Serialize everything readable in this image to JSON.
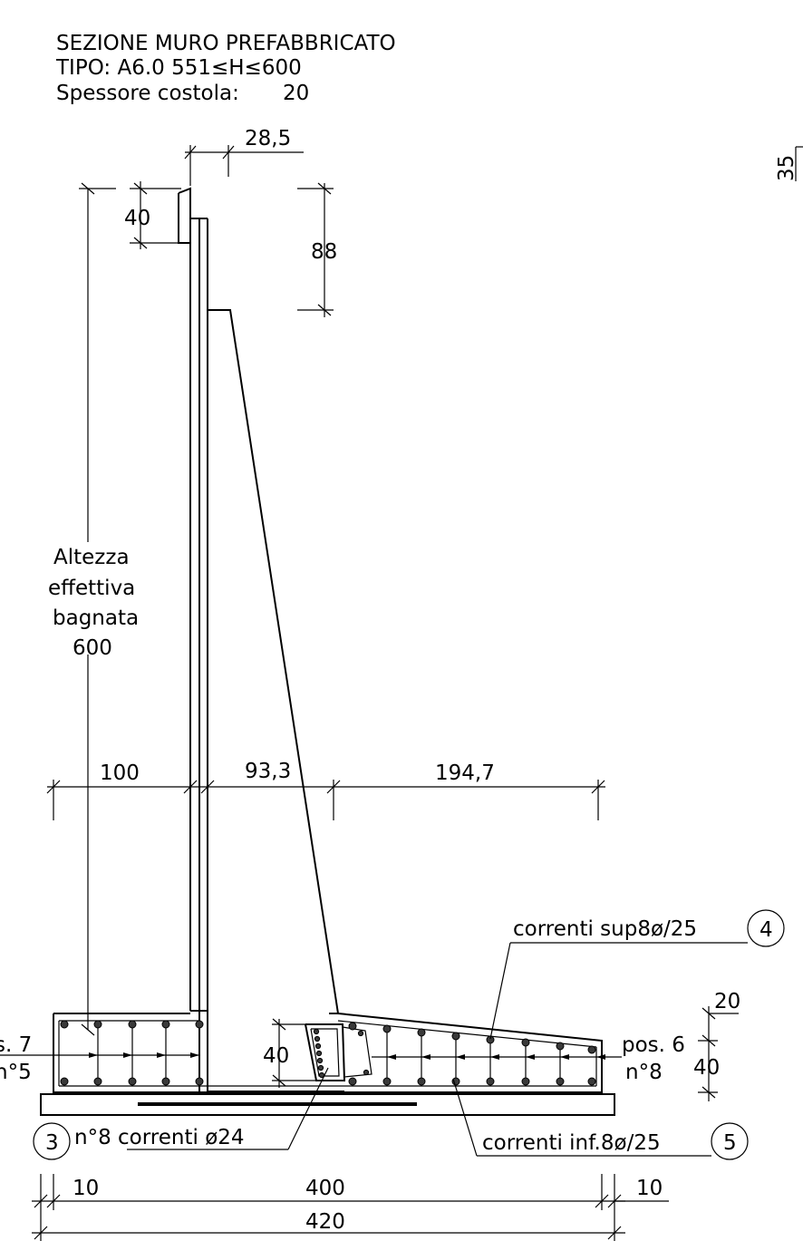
{
  "title": {
    "line1": "SEZIONE MURO PREFABBRICATO",
    "line2": "TIPO:  A6.0    551≤H≤600",
    "line3_label": "Spessore costola:",
    "line3_value": "20"
  },
  "dimensions": {
    "top_width": "28,5",
    "cap_height": "40",
    "stem_top": "88",
    "height_label_1": "Altezza",
    "height_label_2": "effettiva",
    "height_label_3": "bagnata",
    "height_value": "600",
    "base_left": "100",
    "base_mid": "93,3",
    "base_right": "194,7",
    "slab_thickness_top": "20",
    "slab_thickness_bottom": "40",
    "key_depth": "40",
    "edge_left": "10",
    "edge_right": "10",
    "inner_span": "400",
    "total_length": "420",
    "side_fragment": "35"
  },
  "labels": {
    "pos_left_a": "s. 7",
    "pos_left_b": "n°5",
    "pos_right_a": "pos. 6",
    "pos_right_b": "n°8",
    "correnti_sup": "correnti sup8ø/25",
    "correnti_inf": "correnti inf.8ø/25",
    "n8_correnti": "n°8  correnti ø24",
    "circle_3": "3",
    "circle_4": "4",
    "circle_5": "5"
  }
}
